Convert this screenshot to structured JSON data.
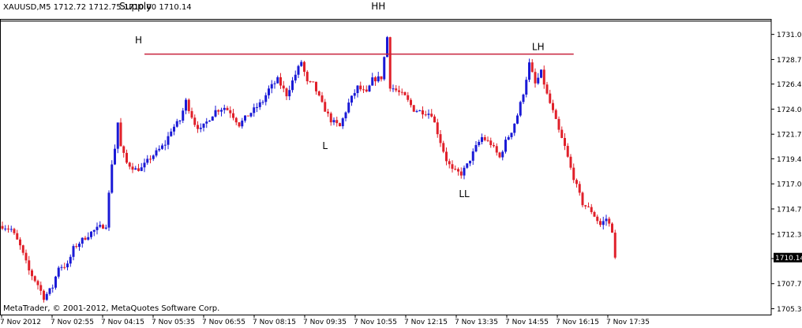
{
  "header": {
    "symbol_line": "XAUUSD,M5  1712.72 1712.75 1710.00 1710.14"
  },
  "footer": {
    "copyright": "MetaTrader, © 2001-2012, MetaQuotes Software Corp."
  },
  "colors": {
    "up_candle": "#1a1ad6",
    "down_candle": "#e0202a",
    "supply_line": "#000000",
    "resistance_line": "#c8233c",
    "axis": "#000000",
    "background": "#ffffff"
  },
  "chart_data": {
    "type": "candlestick",
    "symbol": "XAUUSD",
    "timeframe": "M5",
    "ohlc_header": {
      "open": 1712.72,
      "high": 1712.75,
      "low": 1710.0,
      "close": 1710.14
    },
    "current_price": 1710.14,
    "ylim": [
      1704.8,
      1732.5
    ],
    "y_ticks": [
      "1731.05",
      "1728.70",
      "1726.40",
      "1724.05",
      "1721.70",
      "1719.40",
      "1717.05",
      "1714.70",
      "1712.35",
      "1710.05",
      "1707.70",
      "1705.35"
    ],
    "x_ticks": [
      "7 Nov 2012",
      "7 Nov 02:55",
      "7 Nov 04:15",
      "7 Nov 05:35",
      "7 Nov 06:55",
      "7 Nov 08:15",
      "7 Nov 09:35",
      "7 Nov 10:55",
      "7 Nov 12:15",
      "7 Nov 13:35",
      "7 Nov 14:55",
      "7 Nov 16:15",
      "7 Nov 17:35"
    ],
    "horizontal_lines": [
      {
        "label": "Supply",
        "value": 1732.3
      },
      {
        "label": "",
        "value": 1729.2,
        "from_bar": 48,
        "to_bar": 193
      }
    ],
    "annotations": [
      {
        "text": "Supply",
        "bar": 45,
        "price": 1733.4
      },
      {
        "text": "H",
        "bar": 46,
        "price": 1730.2
      },
      {
        "text": "HH",
        "bar": 127,
        "price": 1733.4
      },
      {
        "text": "L",
        "bar": 109,
        "price": 1720.3
      },
      {
        "text": "LL",
        "bar": 156,
        "price": 1715.8
      },
      {
        "text": "LH",
        "bar": 181,
        "price": 1729.6
      }
    ],
    "anchors": [
      [
        0,
        1713.1
      ],
      [
        3,
        1712.8
      ],
      [
        6,
        1711.2
      ],
      [
        9,
        1708.9
      ],
      [
        12,
        1707.6
      ],
      [
        14,
        1706.4
      ],
      [
        17,
        1707.4
      ],
      [
        19,
        1709.3
      ],
      [
        22,
        1709.4
      ],
      [
        24,
        1711.0
      ],
      [
        27,
        1711.8
      ],
      [
        30,
        1712.5
      ],
      [
        33,
        1713.0
      ],
      [
        35,
        1713.2
      ],
      [
        37,
        1719.0
      ],
      [
        38,
        1720.4
      ],
      [
        39,
        1722.8
      ],
      [
        40,
        1720.5
      ],
      [
        42,
        1719.0
      ],
      [
        45,
        1718.4
      ],
      [
        47,
        1718.5
      ],
      [
        50,
        1719.5
      ],
      [
        52,
        1720.0
      ],
      [
        55,
        1720.8
      ],
      [
        57,
        1722.1
      ],
      [
        60,
        1723.0
      ],
      [
        62,
        1724.8
      ],
      [
        65,
        1722.7
      ],
      [
        67,
        1722.1
      ],
      [
        70,
        1723.2
      ],
      [
        72,
        1723.9
      ],
      [
        75,
        1724.2
      ],
      [
        77,
        1723.8
      ],
      [
        80,
        1722.6
      ],
      [
        82,
        1723.2
      ],
      [
        85,
        1724.0
      ],
      [
        88,
        1724.8
      ],
      [
        90,
        1725.9
      ],
      [
        93,
        1726.8
      ],
      [
        96,
        1725.4
      ],
      [
        99,
        1727.3
      ],
      [
        101,
        1728.5
      ],
      [
        103,
        1726.5
      ],
      [
        105,
        1726.4
      ],
      [
        108,
        1724.5
      ],
      [
        111,
        1723.0
      ],
      [
        114,
        1722.4
      ],
      [
        117,
        1724.6
      ],
      [
        120,
        1726.1
      ],
      [
        123,
        1725.5
      ],
      [
        125,
        1726.8
      ],
      [
        128,
        1727.0
      ],
      [
        130,
        1730.8
      ],
      [
        131,
        1726.2
      ],
      [
        133,
        1725.8
      ],
      [
        136,
        1725.2
      ],
      [
        139,
        1724.0
      ],
      [
        142,
        1723.8
      ],
      [
        145,
        1723.6
      ],
      [
        148,
        1721.0
      ],
      [
        150,
        1719.3
      ],
      [
        152,
        1718.3
      ],
      [
        155,
        1718.0
      ],
      [
        157,
        1718.8
      ],
      [
        160,
        1720.5
      ],
      [
        162,
        1721.4
      ],
      [
        165,
        1720.8
      ],
      [
        168,
        1719.5
      ],
      [
        170,
        1721.0
      ],
      [
        172,
        1722.0
      ],
      [
        174,
        1723.5
      ],
      [
        176,
        1725.6
      ],
      [
        178,
        1728.3
      ],
      [
        180,
        1726.4
      ],
      [
        182,
        1727.5
      ],
      [
        184,
        1725.4
      ],
      [
        186,
        1723.8
      ],
      [
        188,
        1722.0
      ],
      [
        190,
        1720.5
      ],
      [
        192,
        1718.5
      ],
      [
        194,
        1716.8
      ],
      [
        196,
        1715.2
      ],
      [
        199,
        1714.5
      ],
      [
        202,
        1713.2
      ],
      [
        204,
        1713.8
      ],
      [
        206,
        1712.7
      ],
      [
        207,
        1710.1
      ]
    ]
  }
}
